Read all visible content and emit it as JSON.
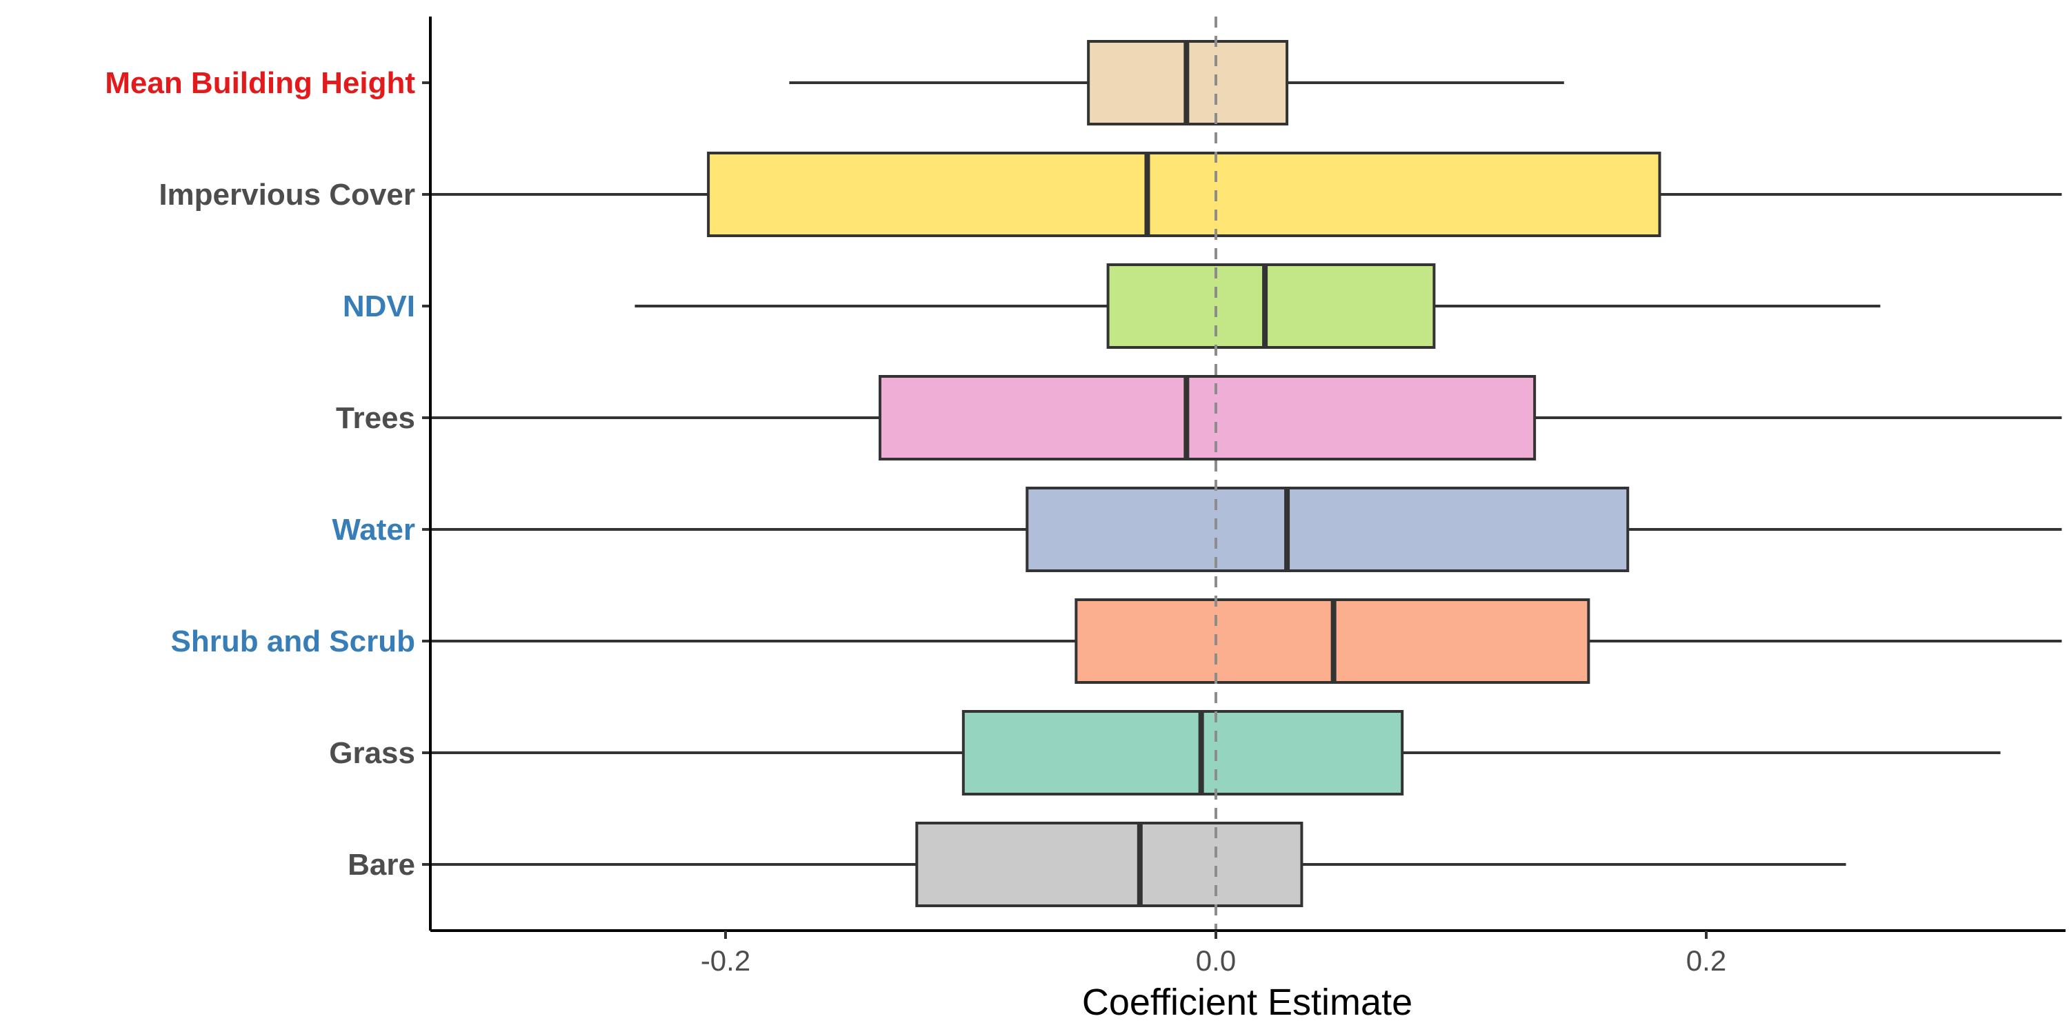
{
  "chart_data": {
    "type": "boxplot",
    "orientation": "horizontal",
    "xlabel": "Coefficient Estimate",
    "ylabel": "",
    "xlim": [
      -0.32,
      0.345
    ],
    "x_ticks": [
      -0.2,
      0.0,
      0.2
    ],
    "x_tick_labels": [
      "-0.2",
      "0.0",
      "0.2"
    ],
    "reference_line": {
      "x": 0,
      "style": "dashed",
      "color": "#8c8c8c"
    },
    "grid": false,
    "legend": "none",
    "series": [
      {
        "name": "Mean Building Height",
        "label_color": "#e31a1c",
        "fill": "#eed8b6",
        "whisker_low": -0.174,
        "q1": -0.052,
        "median": -0.012,
        "q3": 0.029,
        "whisker_high": 0.142
      },
      {
        "name": "Impervious Cover",
        "label_color": "#4d4d4d",
        "fill": "#ffe574",
        "whisker_low": -0.32,
        "q1": -0.207,
        "median": -0.028,
        "q3": 0.181,
        "whisker_high": 0.345
      },
      {
        "name": "NDVI",
        "label_color": "#377eb8",
        "fill": "#c3e687",
        "whisker_low": -0.237,
        "q1": -0.044,
        "median": 0.02,
        "q3": 0.089,
        "whisker_high": 0.271
      },
      {
        "name": "Trees",
        "label_color": "#4d4d4d",
        "fill": "#eeaed5",
        "whisker_low": -0.32,
        "q1": -0.137,
        "median": -0.012,
        "q3": 0.13,
        "whisker_high": 0.345
      },
      {
        "name": "Water",
        "label_color": "#377eb8",
        "fill": "#b0bed9",
        "whisker_low": -0.32,
        "q1": -0.077,
        "median": 0.029,
        "q3": 0.168,
        "whisker_high": 0.345
      },
      {
        "name": "Shrub and Scrub",
        "label_color": "#377eb8",
        "fill": "#fcaf8f",
        "whisker_low": -0.32,
        "q1": -0.057,
        "median": 0.048,
        "q3": 0.152,
        "whisker_high": 0.345
      },
      {
        "name": "Grass",
        "label_color": "#4d4d4d",
        "fill": "#95d5c0",
        "whisker_low": -0.32,
        "q1": -0.103,
        "median": -0.006,
        "q3": 0.076,
        "whisker_high": 0.32
      },
      {
        "name": "Bare",
        "label_color": "#4d4d4d",
        "fill": "#cacaca",
        "whisker_low": -0.32,
        "q1": -0.122,
        "median": -0.031,
        "q3": 0.035,
        "whisker_high": 0.257
      }
    ]
  }
}
